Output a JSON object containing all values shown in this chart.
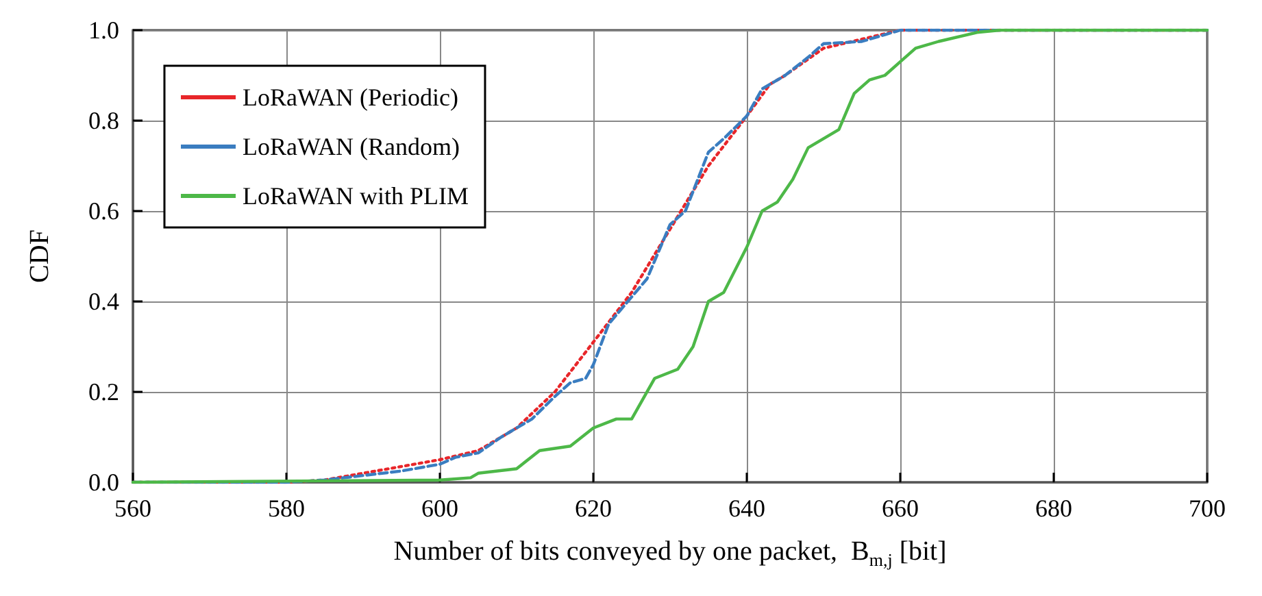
{
  "chart_data": {
    "type": "line",
    "xlabel": "Number of bits conveyed by one packet,  B$_{m,j}$ [bit]",
    "ylabel": "CDF",
    "xlim": [
      560,
      700
    ],
    "xticks": [
      560,
      580,
      600,
      620,
      640,
      660,
      680,
      700
    ],
    "ylim": [
      0,
      1
    ],
    "yticks": [
      {
        "value": 0,
        "label": "0.0"
      },
      {
        "value": 0.2,
        "label": "0.2"
      },
      {
        "value": 0.4,
        "label": "0.4"
      },
      {
        "value": 0.6,
        "label": "0.6"
      },
      {
        "value": 0.8,
        "label": "0.8"
      },
      {
        "value": 1,
        "label": "1.0"
      }
    ],
    "grid": true,
    "legend": "top left",
    "marker": "none",
    "series": [
      {
        "name": "LoRaWAN (Periodic)",
        "color": "#e8262a",
        "line_style": "dotted",
        "x": [
          560,
          580,
          585,
          590,
          600,
          605,
          610,
          615,
          620,
          625,
          630,
          635,
          640,
          643,
          645,
          650,
          655,
          660,
          700
        ],
        "values": [
          0,
          0,
          0.005,
          0.02,
          0.05,
          0.07,
          0.12,
          0.2,
          0.31,
          0.42,
          0.56,
          0.7,
          0.81,
          0.88,
          0.9,
          0.96,
          0.98,
          1,
          1
        ]
      },
      {
        "name": "LoRaWAN (Random)",
        "color": "#3a7dc0",
        "line_style": "dashed",
        "x": [
          560,
          580,
          585,
          590,
          595,
          600,
          602,
          605,
          608,
          612,
          615,
          617,
          619,
          620,
          622,
          625,
          627,
          630,
          632,
          635,
          637,
          640,
          642,
          645,
          648,
          650,
          655,
          658,
          660,
          700
        ],
        "values": [
          0,
          0,
          0.005,
          0.015,
          0.025,
          0.04,
          0.055,
          0.065,
          0.1,
          0.14,
          0.19,
          0.22,
          0.23,
          0.26,
          0.35,
          0.41,
          0.45,
          0.57,
          0.6,
          0.73,
          0.76,
          0.81,
          0.87,
          0.9,
          0.94,
          0.97,
          0.975,
          0.99,
          1,
          1
        ]
      },
      {
        "name": "LoRaWAN with PLIM",
        "color": "#4db848",
        "line_style": "solid",
        "x": [
          560,
          600,
          604,
          605,
          610,
          613,
          617,
          620,
          623,
          625,
          628,
          631,
          633,
          635,
          637,
          640,
          642,
          644,
          646,
          648,
          650,
          652,
          654,
          656,
          658,
          660,
          662,
          665,
          670,
          673,
          700
        ],
        "values": [
          0,
          0.005,
          0.01,
          0.02,
          0.03,
          0.07,
          0.08,
          0.12,
          0.14,
          0.14,
          0.23,
          0.25,
          0.3,
          0.4,
          0.42,
          0.52,
          0.6,
          0.62,
          0.67,
          0.74,
          0.76,
          0.78,
          0.86,
          0.89,
          0.9,
          0.93,
          0.96,
          0.975,
          0.995,
          1,
          1
        ]
      }
    ]
  }
}
